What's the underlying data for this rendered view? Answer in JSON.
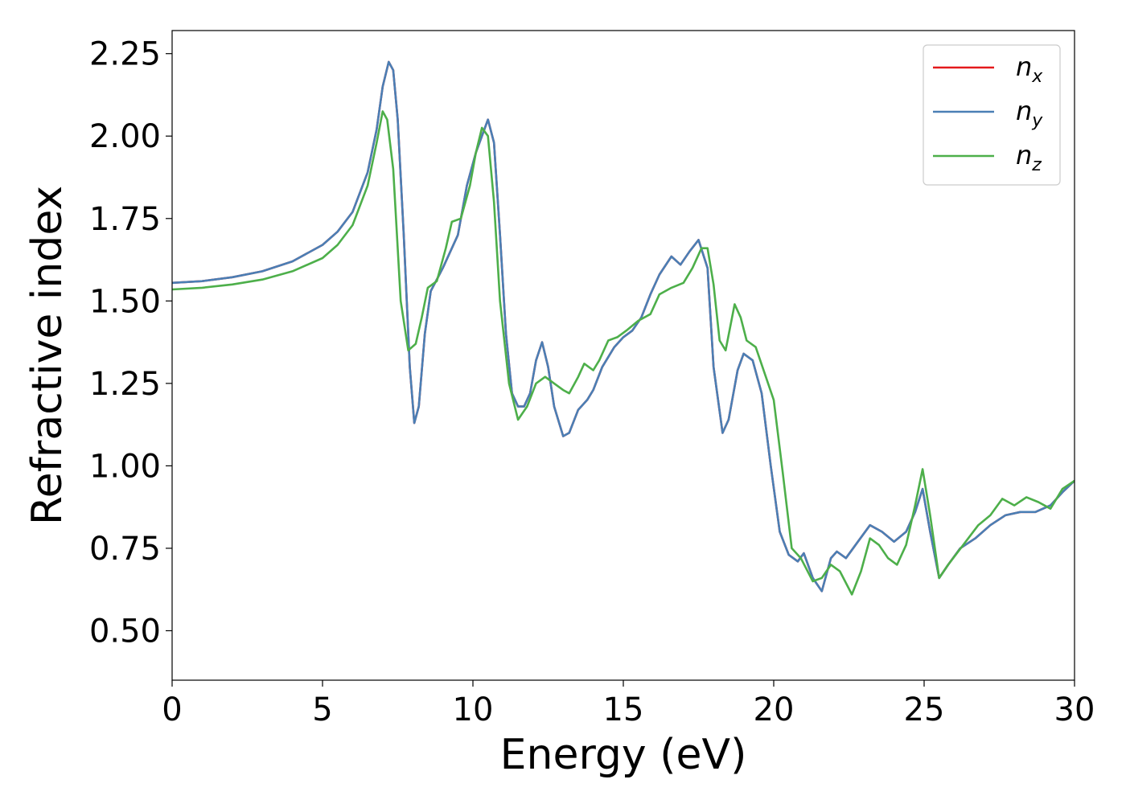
{
  "chart_data": {
    "type": "line",
    "title": "",
    "xlabel": "Energy (eV)",
    "ylabel": "Refractive index",
    "xlim": [
      0,
      30
    ],
    "ylim": [
      0.35,
      2.32
    ],
    "xticks": [
      0,
      5,
      10,
      15,
      20,
      25,
      30
    ],
    "yticks": [
      0.5,
      0.75,
      1.0,
      1.25,
      1.5,
      1.75,
      2.0,
      2.25
    ],
    "xtick_labels": [
      "0",
      "5",
      "10",
      "15",
      "20",
      "25",
      "30"
    ],
    "ytick_labels": [
      "0.50",
      "0.75",
      "1.00",
      "1.25",
      "1.50",
      "1.75",
      "2.00",
      "2.25"
    ],
    "grid": false,
    "legend_position": "top-right",
    "series": [
      {
        "name": "n",
        "subscript": "x",
        "color": "#e41a1c",
        "points": [
          [
            0,
            1.555
          ],
          [
            1,
            1.56
          ],
          [
            2,
            1.572
          ],
          [
            3,
            1.59
          ],
          [
            4,
            1.62
          ],
          [
            5,
            1.67
          ],
          [
            5.5,
            1.71
          ],
          [
            6,
            1.77
          ],
          [
            6.5,
            1.89
          ],
          [
            6.8,
            2.02
          ],
          [
            7.0,
            2.15
          ],
          [
            7.2,
            2.225
          ],
          [
            7.35,
            2.2
          ],
          [
            7.5,
            2.05
          ],
          [
            7.7,
            1.7
          ],
          [
            7.9,
            1.3
          ],
          [
            8.05,
            1.13
          ],
          [
            8.2,
            1.18
          ],
          [
            8.4,
            1.4
          ],
          [
            8.6,
            1.53
          ],
          [
            9.0,
            1.6
          ],
          [
            9.5,
            1.7
          ],
          [
            9.8,
            1.85
          ],
          [
            10.1,
            1.95
          ],
          [
            10.3,
            2.0
          ],
          [
            10.5,
            2.05
          ],
          [
            10.7,
            1.98
          ],
          [
            10.9,
            1.7
          ],
          [
            11.1,
            1.4
          ],
          [
            11.3,
            1.22
          ],
          [
            11.5,
            1.18
          ],
          [
            11.7,
            1.18
          ],
          [
            11.9,
            1.22
          ],
          [
            12.1,
            1.32
          ],
          [
            12.3,
            1.375
          ],
          [
            12.5,
            1.3
          ],
          [
            12.7,
            1.18
          ],
          [
            13.0,
            1.09
          ],
          [
            13.2,
            1.1
          ],
          [
            13.5,
            1.17
          ],
          [
            13.8,
            1.2
          ],
          [
            14.0,
            1.23
          ],
          [
            14.3,
            1.3
          ],
          [
            14.7,
            1.36
          ],
          [
            15.0,
            1.39
          ],
          [
            15.3,
            1.41
          ],
          [
            15.6,
            1.45
          ],
          [
            15.9,
            1.52
          ],
          [
            16.2,
            1.58
          ],
          [
            16.6,
            1.635
          ],
          [
            16.9,
            1.61
          ],
          [
            17.2,
            1.65
          ],
          [
            17.5,
            1.685
          ],
          [
            17.8,
            1.6
          ],
          [
            18.0,
            1.3
          ],
          [
            18.3,
            1.1
          ],
          [
            18.5,
            1.14
          ],
          [
            18.8,
            1.29
          ],
          [
            19.0,
            1.34
          ],
          [
            19.3,
            1.32
          ],
          [
            19.6,
            1.22
          ],
          [
            19.9,
            1.0
          ],
          [
            20.2,
            0.8
          ],
          [
            20.5,
            0.73
          ],
          [
            20.8,
            0.71
          ],
          [
            21.0,
            0.735
          ],
          [
            21.3,
            0.66
          ],
          [
            21.6,
            0.62
          ],
          [
            21.9,
            0.72
          ],
          [
            22.1,
            0.74
          ],
          [
            22.4,
            0.72
          ],
          [
            22.8,
            0.77
          ],
          [
            23.2,
            0.82
          ],
          [
            23.6,
            0.8
          ],
          [
            24.0,
            0.77
          ],
          [
            24.4,
            0.8
          ],
          [
            24.7,
            0.86
          ],
          [
            24.95,
            0.93
          ],
          [
            25.2,
            0.8
          ],
          [
            25.5,
            0.66
          ],
          [
            25.8,
            0.7
          ],
          [
            26.2,
            0.75
          ],
          [
            26.7,
            0.78
          ],
          [
            27.2,
            0.82
          ],
          [
            27.7,
            0.85
          ],
          [
            28.2,
            0.86
          ],
          [
            28.7,
            0.86
          ],
          [
            29.2,
            0.88
          ],
          [
            29.6,
            0.92
          ],
          [
            30.0,
            0.955
          ]
        ]
      },
      {
        "name": "n",
        "subscript": "y",
        "color": "#4a7fb5",
        "points": [
          [
            0,
            1.555
          ],
          [
            1,
            1.56
          ],
          [
            2,
            1.572
          ],
          [
            3,
            1.59
          ],
          [
            4,
            1.62
          ],
          [
            5,
            1.67
          ],
          [
            5.5,
            1.71
          ],
          [
            6,
            1.77
          ],
          [
            6.5,
            1.89
          ],
          [
            6.8,
            2.02
          ],
          [
            7.0,
            2.15
          ],
          [
            7.2,
            2.225
          ],
          [
            7.35,
            2.2
          ],
          [
            7.5,
            2.05
          ],
          [
            7.7,
            1.7
          ],
          [
            7.9,
            1.3
          ],
          [
            8.05,
            1.13
          ],
          [
            8.2,
            1.18
          ],
          [
            8.4,
            1.4
          ],
          [
            8.6,
            1.53
          ],
          [
            9.0,
            1.6
          ],
          [
            9.5,
            1.7
          ],
          [
            9.8,
            1.85
          ],
          [
            10.1,
            1.95
          ],
          [
            10.3,
            2.0
          ],
          [
            10.5,
            2.05
          ],
          [
            10.7,
            1.98
          ],
          [
            10.9,
            1.7
          ],
          [
            11.1,
            1.4
          ],
          [
            11.3,
            1.22
          ],
          [
            11.5,
            1.18
          ],
          [
            11.7,
            1.18
          ],
          [
            11.9,
            1.22
          ],
          [
            12.1,
            1.32
          ],
          [
            12.3,
            1.375
          ],
          [
            12.5,
            1.3
          ],
          [
            12.7,
            1.18
          ],
          [
            13.0,
            1.09
          ],
          [
            13.2,
            1.1
          ],
          [
            13.5,
            1.17
          ],
          [
            13.8,
            1.2
          ],
          [
            14.0,
            1.23
          ],
          [
            14.3,
            1.3
          ],
          [
            14.7,
            1.36
          ],
          [
            15.0,
            1.39
          ],
          [
            15.3,
            1.41
          ],
          [
            15.6,
            1.45
          ],
          [
            15.9,
            1.52
          ],
          [
            16.2,
            1.58
          ],
          [
            16.6,
            1.635
          ],
          [
            16.9,
            1.61
          ],
          [
            17.2,
            1.65
          ],
          [
            17.5,
            1.685
          ],
          [
            17.8,
            1.6
          ],
          [
            18.0,
            1.3
          ],
          [
            18.3,
            1.1
          ],
          [
            18.5,
            1.14
          ],
          [
            18.8,
            1.29
          ],
          [
            19.0,
            1.34
          ],
          [
            19.3,
            1.32
          ],
          [
            19.6,
            1.22
          ],
          [
            19.9,
            1.0
          ],
          [
            20.2,
            0.8
          ],
          [
            20.5,
            0.73
          ],
          [
            20.8,
            0.71
          ],
          [
            21.0,
            0.735
          ],
          [
            21.3,
            0.66
          ],
          [
            21.6,
            0.62
          ],
          [
            21.9,
            0.72
          ],
          [
            22.1,
            0.74
          ],
          [
            22.4,
            0.72
          ],
          [
            22.8,
            0.77
          ],
          [
            23.2,
            0.82
          ],
          [
            23.6,
            0.8
          ],
          [
            24.0,
            0.77
          ],
          [
            24.4,
            0.8
          ],
          [
            24.7,
            0.86
          ],
          [
            24.95,
            0.93
          ],
          [
            25.2,
            0.8
          ],
          [
            25.5,
            0.66
          ],
          [
            25.8,
            0.7
          ],
          [
            26.2,
            0.75
          ],
          [
            26.7,
            0.78
          ],
          [
            27.2,
            0.82
          ],
          [
            27.7,
            0.85
          ],
          [
            28.2,
            0.86
          ],
          [
            28.7,
            0.86
          ],
          [
            29.2,
            0.88
          ],
          [
            29.6,
            0.92
          ],
          [
            30.0,
            0.955
          ]
        ]
      },
      {
        "name": "n",
        "subscript": "z",
        "color": "#4daf4a",
        "points": [
          [
            0,
            1.535
          ],
          [
            1,
            1.54
          ],
          [
            2,
            1.55
          ],
          [
            3,
            1.565
          ],
          [
            4,
            1.59
          ],
          [
            5,
            1.63
          ],
          [
            5.5,
            1.67
          ],
          [
            6,
            1.73
          ],
          [
            6.5,
            1.85
          ],
          [
            6.8,
            1.98
          ],
          [
            7.0,
            2.075
          ],
          [
            7.15,
            2.05
          ],
          [
            7.35,
            1.9
          ],
          [
            7.6,
            1.5
          ],
          [
            7.85,
            1.35
          ],
          [
            8.1,
            1.37
          ],
          [
            8.3,
            1.45
          ],
          [
            8.5,
            1.54
          ],
          [
            8.8,
            1.56
          ],
          [
            9.1,
            1.66
          ],
          [
            9.3,
            1.74
          ],
          [
            9.6,
            1.75
          ],
          [
            9.9,
            1.85
          ],
          [
            10.1,
            1.95
          ],
          [
            10.3,
            2.025
          ],
          [
            10.5,
            2.0
          ],
          [
            10.7,
            1.8
          ],
          [
            10.9,
            1.5
          ],
          [
            11.2,
            1.25
          ],
          [
            11.5,
            1.14
          ],
          [
            11.8,
            1.18
          ],
          [
            12.1,
            1.25
          ],
          [
            12.4,
            1.27
          ],
          [
            12.7,
            1.25
          ],
          [
            13.0,
            1.23
          ],
          [
            13.2,
            1.22
          ],
          [
            13.5,
            1.27
          ],
          [
            13.7,
            1.31
          ],
          [
            14.0,
            1.29
          ],
          [
            14.2,
            1.32
          ],
          [
            14.5,
            1.38
          ],
          [
            14.8,
            1.39
          ],
          [
            15.1,
            1.41
          ],
          [
            15.5,
            1.44
          ],
          [
            15.9,
            1.46
          ],
          [
            16.2,
            1.52
          ],
          [
            16.6,
            1.54
          ],
          [
            17.0,
            1.555
          ],
          [
            17.3,
            1.6
          ],
          [
            17.6,
            1.66
          ],
          [
            17.8,
            1.66
          ],
          [
            18.0,
            1.55
          ],
          [
            18.2,
            1.38
          ],
          [
            18.4,
            1.35
          ],
          [
            18.7,
            1.49
          ],
          [
            18.9,
            1.45
          ],
          [
            19.1,
            1.38
          ],
          [
            19.4,
            1.36
          ],
          [
            19.7,
            1.28
          ],
          [
            20.0,
            1.2
          ],
          [
            20.3,
            0.98
          ],
          [
            20.6,
            0.75
          ],
          [
            20.9,
            0.72
          ],
          [
            21.3,
            0.65
          ],
          [
            21.6,
            0.66
          ],
          [
            21.9,
            0.7
          ],
          [
            22.2,
            0.68
          ],
          [
            22.6,
            0.61
          ],
          [
            22.9,
            0.68
          ],
          [
            23.2,
            0.78
          ],
          [
            23.5,
            0.76
          ],
          [
            23.8,
            0.72
          ],
          [
            24.1,
            0.7
          ],
          [
            24.4,
            0.76
          ],
          [
            24.7,
            0.88
          ],
          [
            24.95,
            0.99
          ],
          [
            25.2,
            0.85
          ],
          [
            25.5,
            0.66
          ],
          [
            25.8,
            0.7
          ],
          [
            26.3,
            0.76
          ],
          [
            26.8,
            0.82
          ],
          [
            27.2,
            0.85
          ],
          [
            27.6,
            0.9
          ],
          [
            28.0,
            0.88
          ],
          [
            28.4,
            0.905
          ],
          [
            28.8,
            0.89
          ],
          [
            29.2,
            0.87
          ],
          [
            29.6,
            0.93
          ],
          [
            30.0,
            0.955
          ]
        ]
      }
    ]
  }
}
